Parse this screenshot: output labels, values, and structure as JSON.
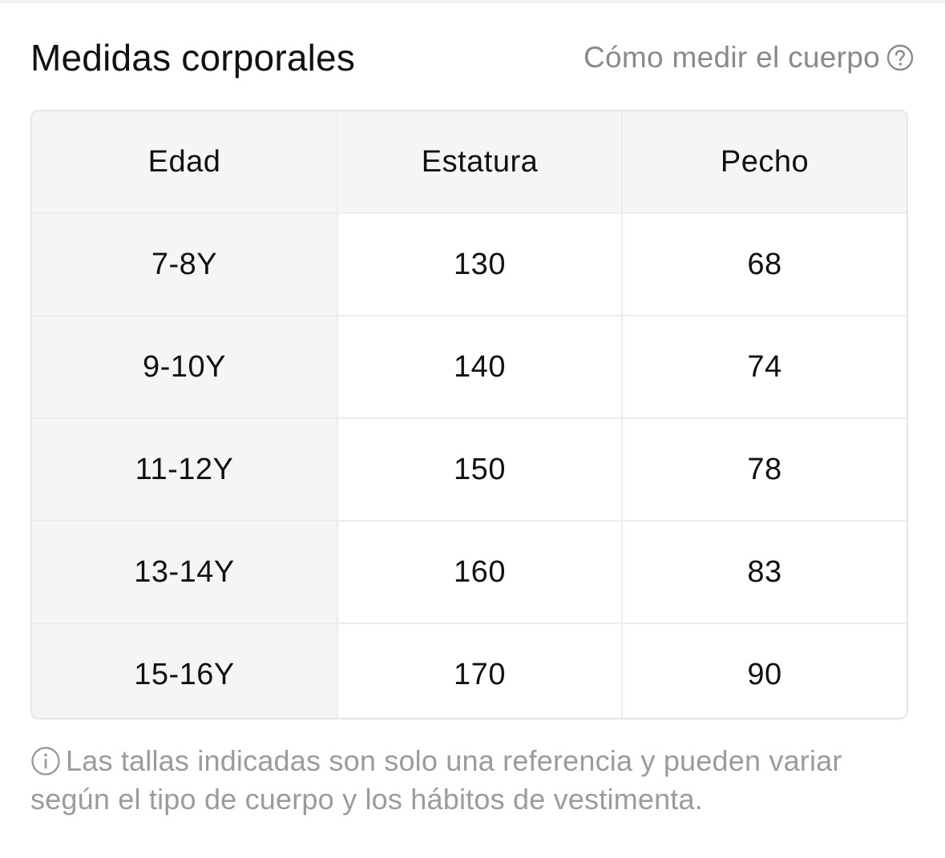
{
  "header": {
    "title": "Medidas corporales",
    "how_to_measure": "Cómo medir el cuerpo",
    "help_icon": "question-circle-icon"
  },
  "table": {
    "columns": [
      "Edad",
      "Estatura",
      "Pecho"
    ],
    "rows": [
      [
        "7-8Y",
        "130",
        "68"
      ],
      [
        "9-10Y",
        "140",
        "74"
      ],
      [
        "11-12Y",
        "150",
        "78"
      ],
      [
        "13-14Y",
        "160",
        "83"
      ],
      [
        "15-16Y",
        "170",
        "90"
      ]
    ]
  },
  "note": {
    "icon": "info-circle-icon",
    "text": "Las tallas indicadas son solo una referencia y pueden variar según el tipo de cuerpo y los hábitos de vestimenta."
  },
  "colors": {
    "text_primary": "#111111",
    "text_muted": "#8a8a8a",
    "header_bg": "#f5f5f5",
    "border": "#e6e6e6"
  }
}
